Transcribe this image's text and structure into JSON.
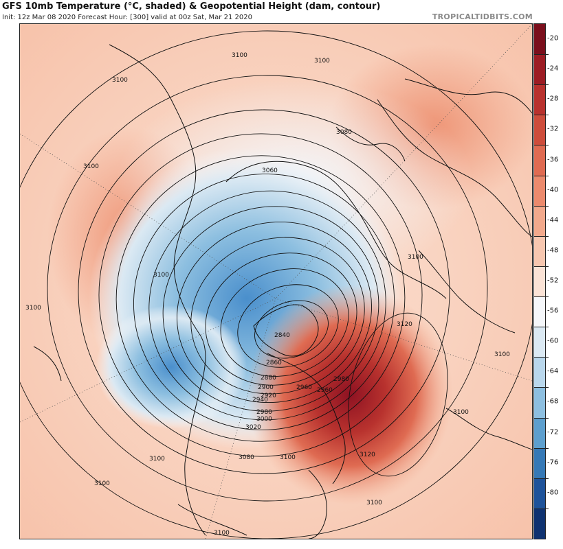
{
  "header": {
    "title": "GFS 10mb Temperature (°C, shaded) & Geopotential Height (dam, contour)",
    "subtitle": "Init: 12z Mar 08 2020   Forecast Hour: [300]   valid at 00z Sat, Mar 21 2020",
    "brand": "TROPICALTIDBITS.COM"
  },
  "colorbar": {
    "ticks": [
      "-20",
      "-24",
      "-28",
      "-32",
      "-36",
      "-40",
      "-44",
      "-48",
      "-52",
      "-56",
      "-60",
      "-64",
      "-68",
      "-72",
      "-76",
      "-80"
    ],
    "colors": [
      "#7a0f1c",
      "#9c1d24",
      "#b8322e",
      "#cd4d3c",
      "#df6b52",
      "#eb8a6d",
      "#f2a98c",
      "#f7c7b0",
      "#fbe3d6",
      "#f5f7fa",
      "#dbe9f3",
      "#b9d7ec",
      "#8dbfe0",
      "#5d9fce",
      "#3679b6",
      "#1e539a",
      "#0f3270"
    ]
  },
  "contour_labels": [
    "3100",
    "3100",
    "3100",
    "3100",
    "3100",
    "3100",
    "3100",
    "3100",
    "3100",
    "3100",
    "3100",
    "3100",
    "3100",
    "3100",
    "3080",
    "3080",
    "3060",
    "2840",
    "2860",
    "2880",
    "2900",
    "2920",
    "2940",
    "2960",
    "2980",
    "3000",
    "3020",
    "3120",
    "3120",
    "2960",
    "2980"
  ],
  "colors": {
    "warm_core": "#a3172a",
    "cold_core": "#4a8fcc",
    "land_line": "#111111",
    "contour_line": "#111111"
  }
}
